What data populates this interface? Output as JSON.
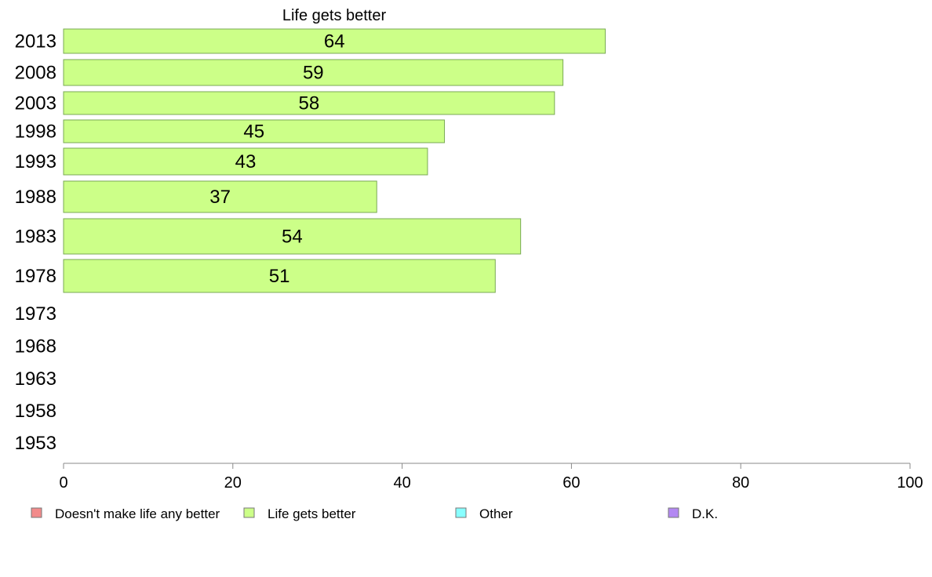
{
  "chart_data": {
    "type": "bar",
    "orientation": "horizontal",
    "title": "Life gets better",
    "categories": [
      "2013",
      "2008",
      "2003",
      "1998",
      "1993",
      "1988",
      "1983",
      "1978",
      "1973",
      "1968",
      "1963",
      "1958",
      "1953"
    ],
    "series": [
      {
        "name": "Life gets better",
        "values": [
          64,
          59,
          58,
          45,
          43,
          37,
          54,
          51,
          null,
          null,
          null,
          null,
          null
        ]
      }
    ],
    "xlim": [
      0,
      100
    ],
    "xticks": [
      0,
      20,
      40,
      60,
      80,
      100
    ],
    "grid": false,
    "legend": {
      "position": "bottom",
      "entries": [
        {
          "label": "Doesn't make life any better",
          "color": "#f28b8b"
        },
        {
          "label": "Life gets better",
          "color": "#ccff88"
        },
        {
          "label": "Other",
          "color": "#88ffff"
        },
        {
          "label": "D.K.",
          "color": "#b388f2"
        }
      ]
    },
    "colors": {
      "bar_fill": "#ccff88",
      "bar_stroke": "#7aaa55",
      "axis": "#888888"
    }
  }
}
